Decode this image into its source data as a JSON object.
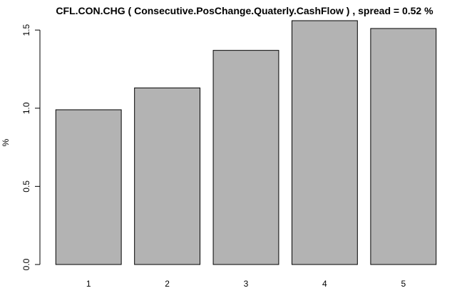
{
  "chart_data": {
    "type": "bar",
    "title": "CFL.CON.CHG ( Consecutive.PosChange.Quaterly.CashFlow ) , spread = 0.52 %",
    "xlabel": "",
    "ylabel": "%",
    "categories": [
      "1",
      "2",
      "3",
      "4",
      "5"
    ],
    "values": [
      0.99,
      1.13,
      1.37,
      1.56,
      1.51
    ],
    "ylim": [
      0,
      1.56
    ],
    "yticks": [
      0.0,
      0.5,
      1.0,
      1.5
    ],
    "ytick_labels": [
      "0.0",
      "0.5",
      "1.0",
      "1.5"
    ],
    "grid": false,
    "bar_color": "#b3b3b3"
  }
}
